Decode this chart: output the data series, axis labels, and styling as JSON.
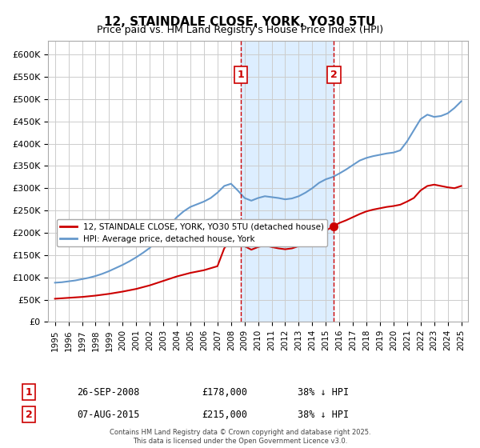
{
  "title": "12, STAINDALE CLOSE, YORK, YO30 5TU",
  "subtitle": "Price paid vs. HM Land Registry's House Price Index (HPI)",
  "footnote": "Contains HM Land Registry data © Crown copyright and database right 2025.\nThis data is licensed under the Open Government Licence v3.0.",
  "legend_entry1": "12, STAINDALE CLOSE, YORK, YO30 5TU (detached house)",
  "legend_entry2": "HPI: Average price, detached house, York",
  "marker1_date": "26-SEP-2008",
  "marker1_price": "£178,000",
  "marker1_hpi": "38% ↓ HPI",
  "marker1_year": 2008.73,
  "marker2_date": "07-AUG-2015",
  "marker2_price": "£215,000",
  "marker2_hpi": "38% ↓ HPI",
  "marker2_year": 2015.6,
  "color_property": "#cc0000",
  "color_hpi": "#6699cc",
  "color_marker_fill": "#cc0000",
  "shade_color": "#ddeeff",
  "ylim": [
    0,
    630000
  ],
  "yticks": [
    0,
    50000,
    100000,
    150000,
    200000,
    250000,
    300000,
    350000,
    400000,
    450000,
    500000,
    550000,
    600000
  ],
  "ytick_labels": [
    "£0",
    "£50K",
    "£100K",
    "£150K",
    "£200K",
    "£250K",
    "£300K",
    "£350K",
    "£400K",
    "£450K",
    "£500K",
    "£550K",
    "£600K"
  ],
  "hpi_years": [
    1995,
    1995.5,
    1996,
    1996.5,
    1997,
    1997.5,
    1998,
    1998.5,
    1999,
    1999.5,
    2000,
    2000.5,
    2001,
    2001.5,
    2002,
    2002.5,
    2003,
    2003.5,
    2004,
    2004.5,
    2005,
    2005.5,
    2006,
    2006.5,
    2007,
    2007.5,
    2008,
    2008.5,
    2009,
    2009.5,
    2010,
    2010.5,
    2011,
    2011.5,
    2012,
    2012.5,
    2013,
    2013.5,
    2014,
    2014.5,
    2015,
    2015.5,
    2016,
    2016.5,
    2017,
    2017.5,
    2018,
    2018.5,
    2019,
    2019.5,
    2020,
    2020.5,
    2021,
    2021.5,
    2022,
    2022.5,
    2023,
    2023.5,
    2024,
    2024.5,
    2025
  ],
  "hpi_values": [
    88000,
    89000,
    91000,
    93000,
    96000,
    99000,
    103000,
    108000,
    114000,
    121000,
    128000,
    136000,
    145000,
    155000,
    166000,
    182000,
    200000,
    218000,
    235000,
    248000,
    258000,
    264000,
    270000,
    278000,
    290000,
    305000,
    310000,
    295000,
    278000,
    272000,
    278000,
    282000,
    280000,
    278000,
    275000,
    277000,
    282000,
    290000,
    300000,
    312000,
    320000,
    325000,
    333000,
    342000,
    352000,
    362000,
    368000,
    372000,
    375000,
    378000,
    380000,
    385000,
    405000,
    430000,
    455000,
    465000,
    460000,
    462000,
    468000,
    480000,
    495000
  ],
  "prop_years": [
    1995,
    1996,
    1997,
    1998,
    1999,
    2000,
    2001,
    2002,
    2003,
    2004,
    2005,
    2006,
    2007,
    2007.5,
    2008,
    2008.73,
    2009,
    2009.5,
    2010,
    2010.5,
    2011,
    2011.5,
    2012,
    2012.5,
    2013,
    2013.5,
    2014,
    2014.5,
    2015,
    2015.6,
    2016,
    2016.5,
    2017,
    2017.5,
    2018,
    2018.5,
    2019,
    2019.5,
    2020,
    2020.5,
    2021,
    2021.5,
    2022,
    2022.5,
    2023,
    2023.5,
    2024,
    2024.5,
    2025
  ],
  "prop_values": [
    52000,
    54000,
    56000,
    59000,
    63000,
    68000,
    74000,
    82000,
    92000,
    102000,
    110000,
    116000,
    125000,
    165000,
    185000,
    178000,
    170000,
    162000,
    168000,
    172000,
    168000,
    165000,
    163000,
    165000,
    170000,
    176000,
    185000,
    195000,
    205000,
    215000,
    222000,
    228000,
    235000,
    242000,
    248000,
    252000,
    255000,
    258000,
    260000,
    263000,
    270000,
    278000,
    295000,
    305000,
    308000,
    305000,
    302000,
    300000,
    305000
  ]
}
